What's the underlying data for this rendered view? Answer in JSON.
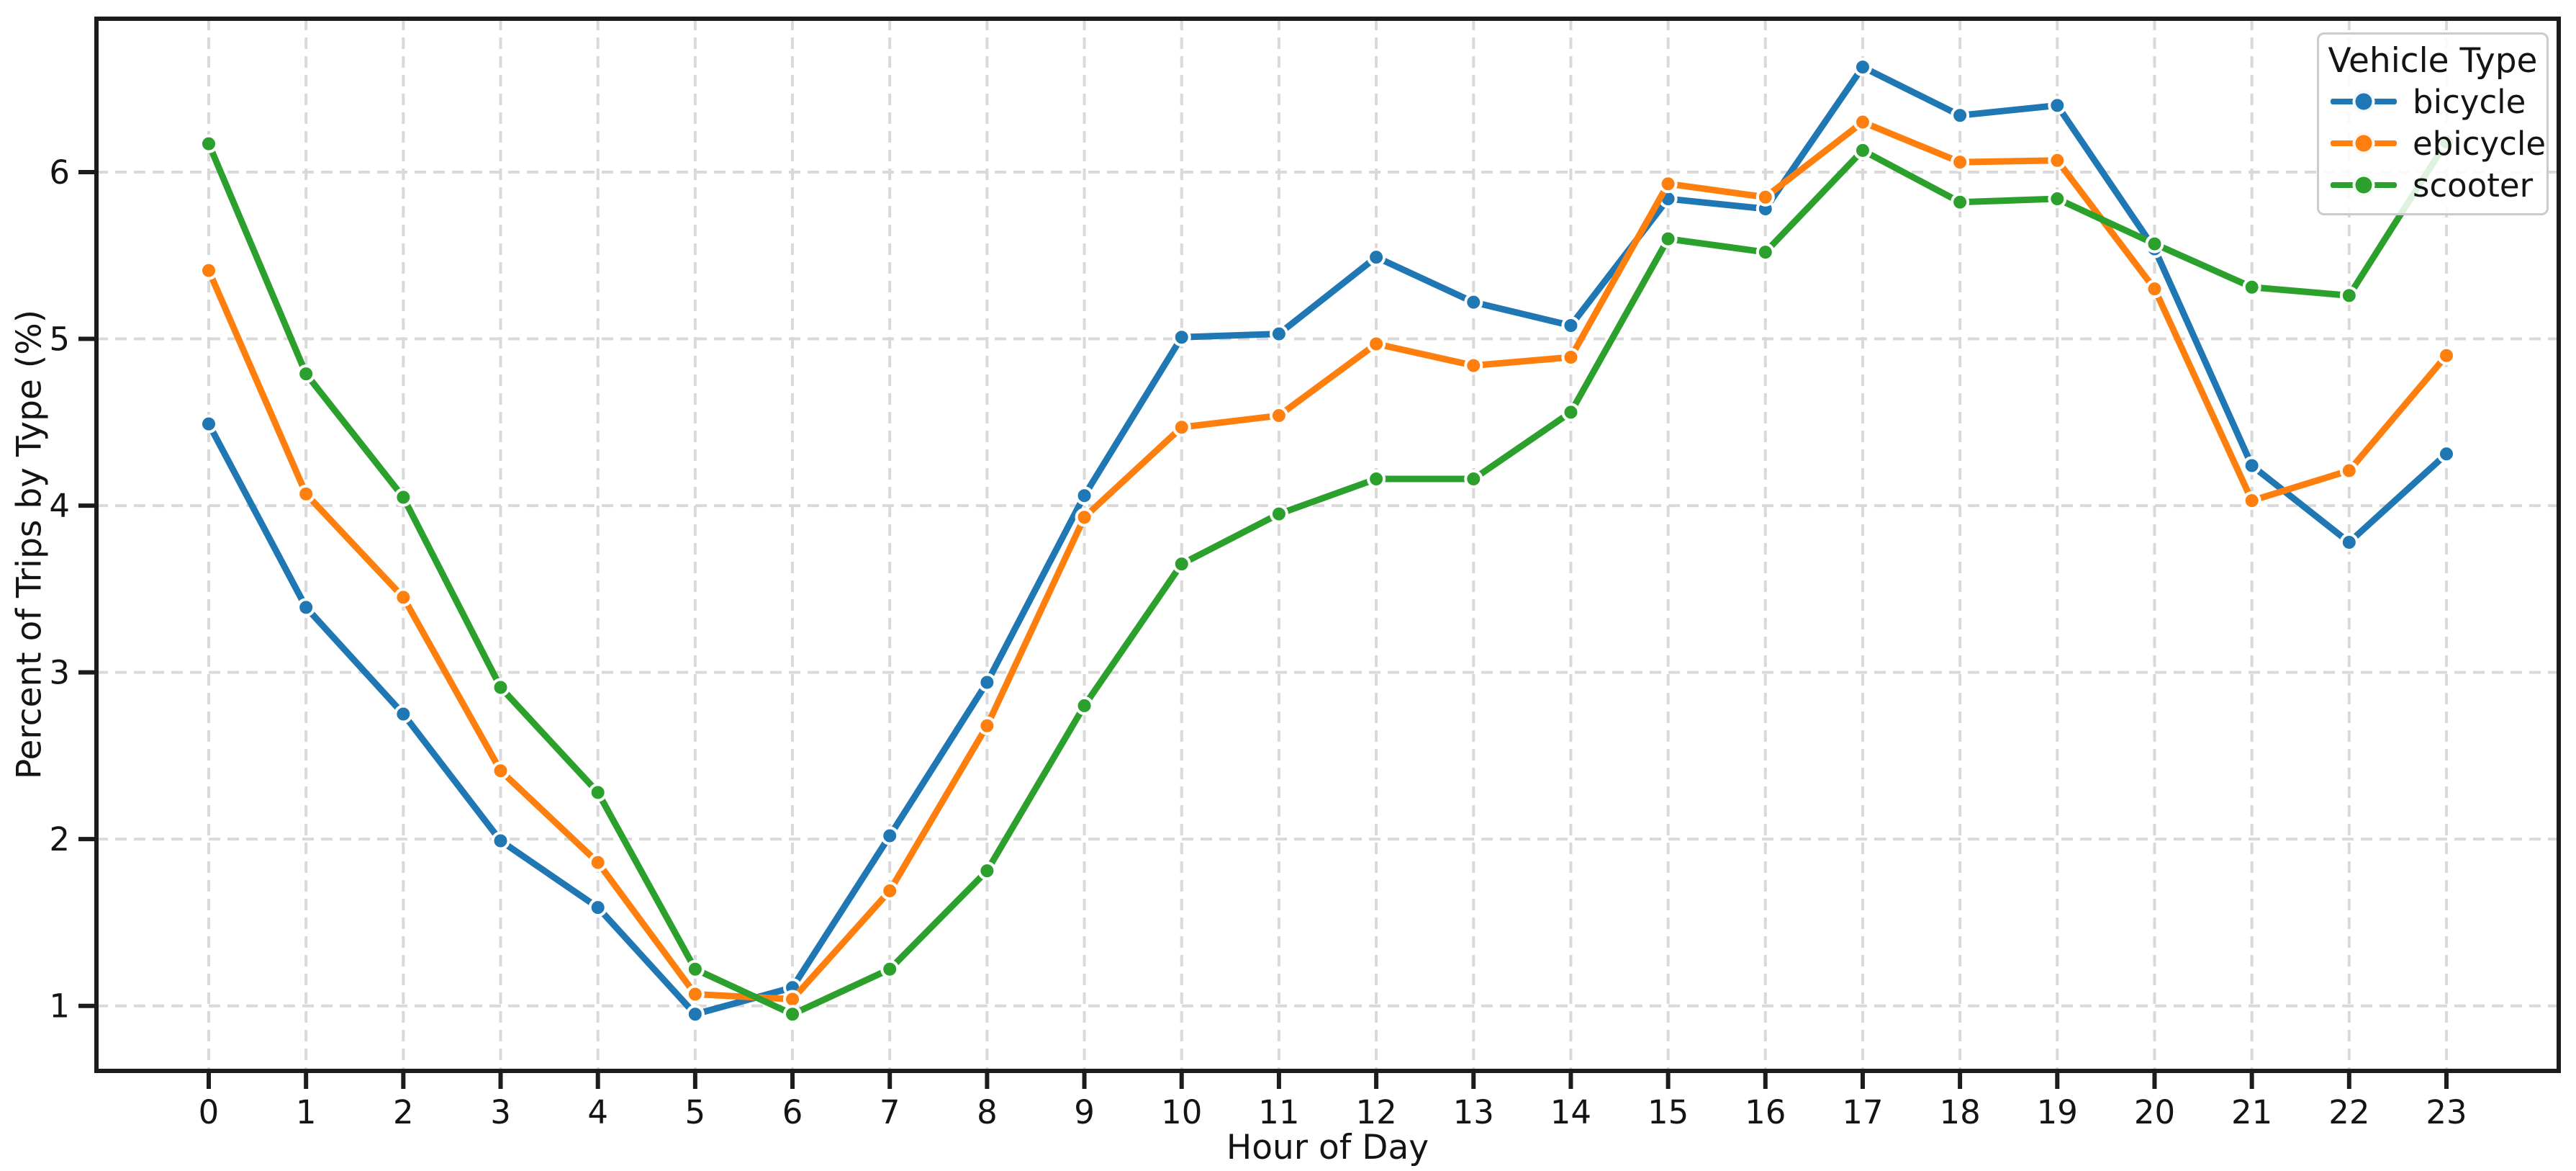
{
  "chart_data": {
    "type": "line",
    "title": "",
    "xlabel": "Hour of Day",
    "ylabel": "Percent of Trips by Type (%)",
    "x": [
      0,
      1,
      2,
      3,
      4,
      5,
      6,
      7,
      8,
      9,
      10,
      11,
      12,
      13,
      14,
      15,
      16,
      17,
      18,
      19,
      20,
      21,
      22,
      23
    ],
    "x_tick_labels": [
      "0",
      "1",
      "2",
      "3",
      "4",
      "5",
      "6",
      "7",
      "8",
      "9",
      "10",
      "11",
      "12",
      "13",
      "14",
      "15",
      "16",
      "17",
      "18",
      "19",
      "20",
      "21",
      "22",
      "23"
    ],
    "y_ticks": [
      "1",
      "2",
      "3",
      "4",
      "5",
      "6"
    ],
    "y_tick_values": [
      1,
      2,
      3,
      4,
      5,
      6
    ],
    "ylim": [
      0.61,
      6.92
    ],
    "grid": "dashed",
    "grid_color": "#d9d9d9",
    "spine_color": "#1c1c1c",
    "legend": {
      "title": "Vehicle Type",
      "position": "upper right"
    },
    "series": [
      {
        "name": "bicycle",
        "color": "#1f77b4",
        "values": [
          4.49,
          3.39,
          2.75,
          1.99,
          1.59,
          0.95,
          1.11,
          2.02,
          2.94,
          4.06,
          5.01,
          5.03,
          5.49,
          5.22,
          5.08,
          5.84,
          5.78,
          6.63,
          6.34,
          6.4,
          5.54,
          4.24,
          3.78,
          4.31
        ]
      },
      {
        "name": "ebicycle",
        "color": "#ff7f0e",
        "values": [
          5.41,
          4.07,
          3.45,
          2.41,
          1.86,
          1.07,
          1.04,
          1.69,
          2.68,
          3.93,
          4.47,
          4.54,
          4.97,
          4.84,
          4.89,
          5.93,
          5.85,
          6.3,
          6.06,
          6.07,
          5.3,
          4.03,
          4.21,
          4.9
        ]
      },
      {
        "name": "scooter",
        "color": "#2ca02c",
        "values": [
          6.17,
          4.79,
          4.05,
          2.91,
          2.28,
          1.22,
          0.95,
          1.22,
          1.81,
          2.8,
          3.65,
          3.95,
          4.16,
          4.16,
          4.56,
          5.6,
          5.52,
          6.13,
          5.82,
          5.84,
          5.57,
          5.31,
          5.26,
          6.18
        ]
      }
    ]
  }
}
